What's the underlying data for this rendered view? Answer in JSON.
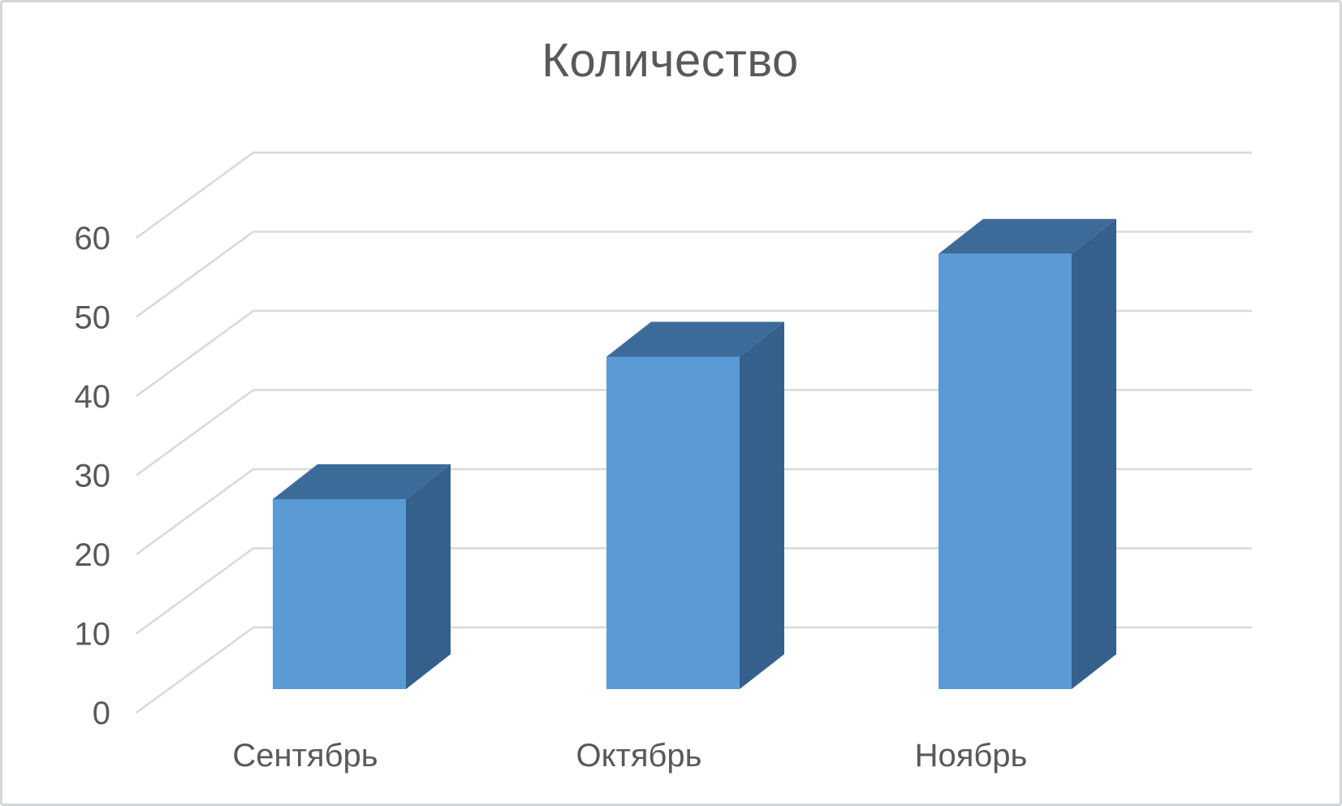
{
  "title": "Количество",
  "colors": {
    "bar_front": "#5B9BD5",
    "bar_top": "#3D6B99",
    "bar_side": "#35608C",
    "gridline": "#D9D9D9",
    "text": "#595959",
    "frame_border": "#D4D6D8",
    "background": "#FFFFFF"
  },
  "chart_data": {
    "type": "bar",
    "variant": "3d-column",
    "title": "Количество",
    "categories": [
      "Сентябрь",
      "Октябрь",
      "Ноябрь"
    ],
    "values": [
      24,
      42,
      55
    ],
    "series": [
      {
        "name": "Количество",
        "values": [
          24,
          42,
          55
        ]
      }
    ],
    "yticks": [
      0,
      10,
      20,
      30,
      40,
      50,
      60
    ],
    "ylim": [
      0,
      60
    ],
    "xlabel": "",
    "ylabel": "",
    "grid": true,
    "legend": false
  }
}
